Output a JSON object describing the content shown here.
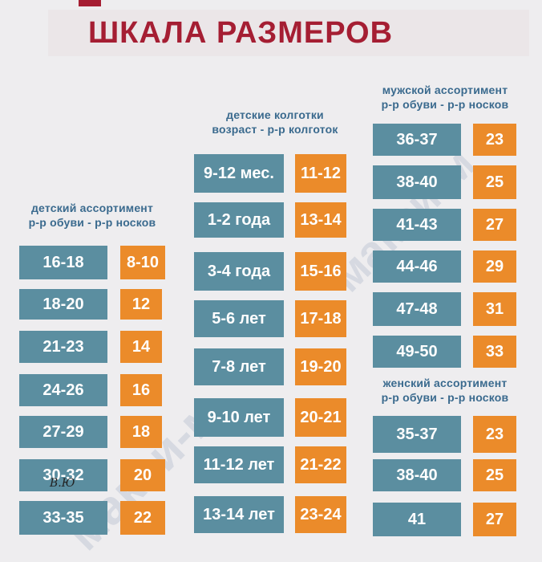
{
  "title": "ШКАЛА РАЗМЕРОВ",
  "watermark": "макси-м",
  "signature": "В.Ю",
  "children": {
    "heading": [
      "детский ассортимент",
      "р-р обуви - р-р носков"
    ],
    "rows": [
      {
        "shoe": "16-18",
        "sock": "8-10"
      },
      {
        "shoe": "18-20",
        "sock": "12"
      },
      {
        "shoe": "21-23",
        "sock": "14"
      },
      {
        "shoe": "24-26",
        "sock": "16"
      },
      {
        "shoe": "27-29",
        "sock": "18"
      },
      {
        "shoe": "30-32",
        "sock": "20"
      },
      {
        "shoe": "33-35",
        "sock": "22"
      }
    ]
  },
  "tights": {
    "heading": [
      "детские колготки",
      "возраст - р-р колготок"
    ],
    "rows": [
      {
        "age": "9-12 мес.",
        "size": "11-12"
      },
      {
        "age": "1-2 года",
        "size": "13-14"
      },
      {
        "age": "3-4 года",
        "size": "15-16"
      },
      {
        "age": "5-6 лет",
        "size": "17-18"
      },
      {
        "age": "7-8 лет",
        "size": "19-20"
      },
      {
        "age": "9-10 лет",
        "size": "20-21"
      },
      {
        "age": "11-12 лет",
        "size": "21-22"
      },
      {
        "age": "13-14 лет",
        "size": "23-24"
      }
    ]
  },
  "men": {
    "heading": [
      "мужской ассортимент",
      "р-р обуви - р-р носков"
    ],
    "rows": [
      {
        "shoe": "36-37",
        "sock": "23"
      },
      {
        "shoe": "38-40",
        "sock": "25"
      },
      {
        "shoe": "41-43",
        "sock": "27"
      },
      {
        "shoe": "44-46",
        "sock": "29"
      },
      {
        "shoe": "47-48",
        "sock": "31"
      },
      {
        "shoe": "49-50",
        "sock": "33"
      }
    ]
  },
  "women": {
    "heading": [
      "женский  ассортимент",
      "р-р обуви - р-р носков"
    ],
    "rows": [
      {
        "shoe": "35-37",
        "sock": "23"
      },
      {
        "shoe": "38-40",
        "sock": "25"
      },
      {
        "shoe": "41",
        "sock": "27"
      }
    ]
  },
  "colors": {
    "title": "#a51e33",
    "blue_cell": "#5b8ea0",
    "orange_cell": "#eb8b2a",
    "heading": "#3a6a8e"
  }
}
